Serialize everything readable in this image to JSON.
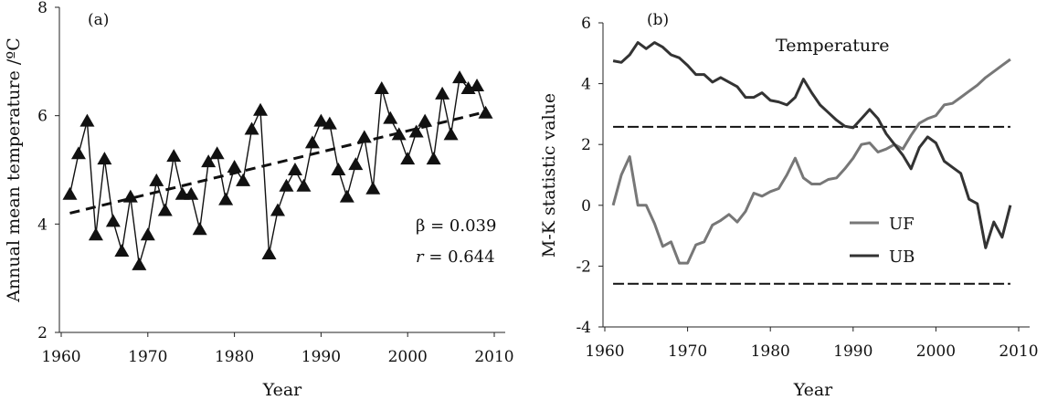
{
  "chart_data": [
    {
      "panel_label": "(a)",
      "type": "line",
      "title": "",
      "xlabel": "Year",
      "ylabel": "Annual mean temperature /ºC",
      "xlim": [
        1960,
        2010
      ],
      "ylim": [
        2,
        8
      ],
      "xticks": [
        "1960",
        "1970",
        "1980",
        "1990",
        "2000",
        "2010"
      ],
      "yticks": [
        "2",
        "4",
        "6",
        "8"
      ],
      "x": [
        1961,
        1962,
        1963,
        1964,
        1965,
        1966,
        1967,
        1968,
        1969,
        1970,
        1971,
        1972,
        1973,
        1974,
        1975,
        1976,
        1977,
        1978,
        1979,
        1980,
        1981,
        1982,
        1983,
        1984,
        1985,
        1986,
        1987,
        1988,
        1989,
        1990,
        1991,
        1992,
        1993,
        1994,
        1995,
        1996,
        1997,
        1998,
        1999,
        2000,
        2001,
        2002,
        2003,
        2004,
        2005,
        2006,
        2007,
        2008,
        2009
      ],
      "series": [
        {
          "name": "",
          "marker": "triangle",
          "values": [
            4.55,
            5.3,
            5.9,
            3.8,
            5.2,
            4.05,
            3.5,
            4.5,
            3.25,
            3.8,
            4.8,
            4.25,
            5.25,
            4.55,
            4.55,
            3.9,
            5.15,
            5.3,
            4.45,
            5.05,
            4.8,
            5.75,
            6.1,
            3.45,
            4.25,
            4.7,
            5.0,
            4.7,
            5.5,
            5.9,
            5.85,
            5.0,
            4.5,
            5.1,
            5.6,
            4.65,
            6.5,
            5.95,
            5.65,
            5.2,
            5.7,
            5.9,
            5.2,
            6.4,
            5.65,
            6.7,
            6.5,
            6.55,
            6.05
          ]
        }
      ],
      "trend": {
        "style": "dashed",
        "x": [
          1961,
          2009
        ],
        "y": [
          4.2,
          6.07
        ]
      },
      "annotations": [
        "β = 0.039",
        "r",
        " = 0.644"
      ]
    },
    {
      "panel_label": "(b)",
      "type": "line",
      "title": "Temperature",
      "xlabel": "Year",
      "ylabel": "M-K statistic value",
      "xlim": [
        1960,
        2010
      ],
      "ylim": [
        -4,
        6
      ],
      "xticks": [
        "1960",
        "1970",
        "1980",
        "1990",
        "2000",
        "2010"
      ],
      "yticks": [
        "-4",
        "-2",
        "0",
        "2",
        "4",
        "6"
      ],
      "x": [
        1961,
        1962,
        1963,
        1964,
        1965,
        1966,
        1967,
        1968,
        1969,
        1970,
        1971,
        1972,
        1973,
        1974,
        1975,
        1976,
        1977,
        1978,
        1979,
        1980,
        1981,
        1982,
        1983,
        1984,
        1985,
        1986,
        1987,
        1988,
        1989,
        1990,
        1991,
        1992,
        1993,
        1994,
        1995,
        1996,
        1997,
        1998,
        1999,
        2000,
        2001,
        2002,
        2003,
        2004,
        2005,
        2006,
        2007,
        2008,
        2009
      ],
      "series": [
        {
          "name": "UF",
          "color": "#777777",
          "values": [
            0.0,
            1.0,
            1.6,
            0.0,
            0.0,
            -0.6,
            -1.35,
            -1.2,
            -1.9,
            -1.9,
            -1.3,
            -1.2,
            -0.65,
            -0.5,
            -0.3,
            -0.55,
            -0.2,
            0.4,
            0.3,
            0.45,
            0.55,
            1.0,
            1.55,
            0.9,
            0.7,
            0.7,
            0.85,
            0.9,
            1.2,
            1.55,
            2.0,
            2.05,
            1.75,
            1.85,
            2.0,
            1.85,
            2.3,
            2.7,
            2.85,
            2.95,
            3.3,
            3.35,
            3.55,
            3.75,
            3.95,
            4.2,
            4.4,
            4.6,
            4.8
          ]
        },
        {
          "name": "UB",
          "color": "#333333",
          "values": [
            4.75,
            4.7,
            4.95,
            5.35,
            5.15,
            5.35,
            5.2,
            4.95,
            4.85,
            4.6,
            4.3,
            4.3,
            4.05,
            4.2,
            4.05,
            3.9,
            3.55,
            3.55,
            3.7,
            3.45,
            3.4,
            3.3,
            3.55,
            4.15,
            3.7,
            3.3,
            3.05,
            2.8,
            2.6,
            2.55,
            2.85,
            3.15,
            2.85,
            2.35,
            2.0,
            1.65,
            1.2,
            1.9,
            2.25,
            2.05,
            1.45,
            1.25,
            1.05,
            0.2,
            0.05,
            -1.4,
            -0.55,
            -1.05,
            0.0
          ]
        }
      ],
      "reference_lines": [
        2.58,
        -2.58
      ]
    }
  ]
}
